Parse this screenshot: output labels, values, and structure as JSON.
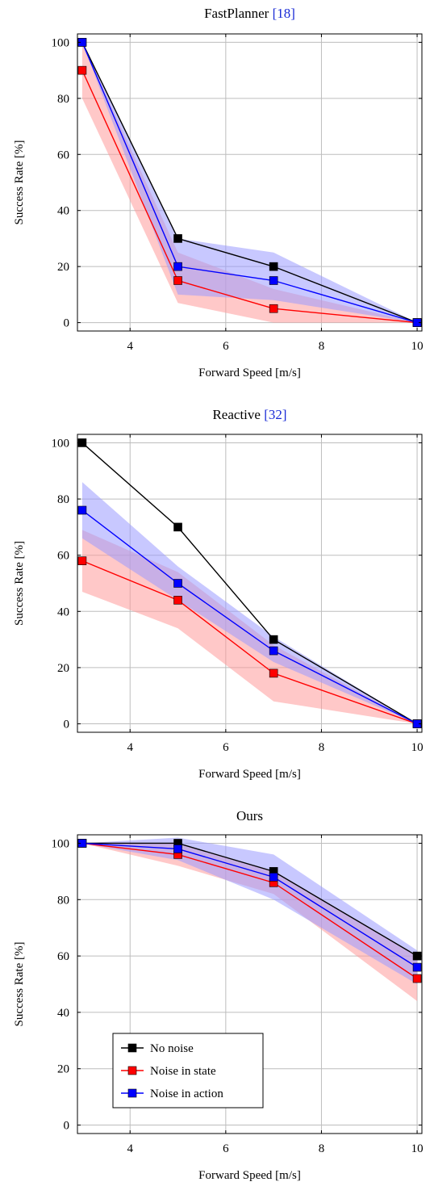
{
  "figure": {
    "xlabel": "Forward Speed [m/s]",
    "ylabel": "Success Rate [%]"
  },
  "legend": {
    "placement": "lower-left",
    "entries": [
      {
        "label": "No noise",
        "color": "#000000"
      },
      {
        "label": "Noise in state",
        "color": "#ff0000"
      },
      {
        "label": "Noise in action",
        "color": "#0000ff"
      }
    ]
  },
  "chart_data": [
    {
      "type": "line",
      "title": "FastPlanner",
      "title_citation": "[18]",
      "xlabel": "Forward Speed [m/s]",
      "ylabel": "Success Rate [%]",
      "x": [
        3,
        5,
        7,
        10
      ],
      "xlim": [
        2.9,
        10.1
      ],
      "ylim": [
        -3,
        103
      ],
      "xticks": [
        4,
        6,
        8,
        10
      ],
      "yticks": [
        0,
        20,
        40,
        60,
        80,
        100
      ],
      "grid": true,
      "series": [
        {
          "name": "No noise",
          "color": "#000000",
          "values": [
            100,
            30,
            20,
            0
          ],
          "band": null
        },
        {
          "name": "Noise in state",
          "color": "#ff0000",
          "values": [
            90,
            15,
            5,
            0
          ],
          "band": {
            "lower": [
              80,
              7,
              0,
              0
            ],
            "upper": [
              100,
              25,
              12,
              0
            ]
          }
        },
        {
          "name": "Noise in action",
          "color": "#0000ff",
          "values": [
            100,
            20,
            15,
            0
          ],
          "band": {
            "lower": [
              100,
              10,
              8,
              0
            ],
            "upper": [
              100,
              30,
              25,
              0
            ]
          }
        }
      ]
    },
    {
      "type": "line",
      "title": "Reactive",
      "title_citation": "[32]",
      "xlabel": "Forward Speed [m/s]",
      "ylabel": "Success Rate [%]",
      "x": [
        3,
        5,
        7,
        10
      ],
      "xlim": [
        2.9,
        10.1
      ],
      "ylim": [
        -3,
        103
      ],
      "xticks": [
        4,
        6,
        8,
        10
      ],
      "yticks": [
        0,
        20,
        40,
        60,
        80,
        100
      ],
      "grid": true,
      "series": [
        {
          "name": "No noise",
          "color": "#000000",
          "values": [
            100,
            70,
            30,
            0
          ],
          "band": null
        },
        {
          "name": "Noise in state",
          "color": "#ff0000",
          "values": [
            58,
            44,
            18,
            0
          ],
          "band": {
            "lower": [
              47,
              34,
              8,
              0
            ],
            "upper": [
              69,
              54,
              28,
              0
            ]
          }
        },
        {
          "name": "Noise in action",
          "color": "#0000ff",
          "values": [
            76,
            50,
            26,
            0
          ],
          "band": {
            "lower": [
              66,
              44,
              22,
              0
            ],
            "upper": [
              86,
              56,
              31,
              0
            ]
          }
        }
      ]
    },
    {
      "type": "line",
      "title": "Ours",
      "title_citation": "",
      "xlabel": "Forward Speed [m/s]",
      "ylabel": "Success Rate [%]",
      "x": [
        3,
        5,
        7,
        10
      ],
      "xlim": [
        2.9,
        10.1
      ],
      "ylim": [
        -3,
        103
      ],
      "xticks": [
        4,
        6,
        8,
        10
      ],
      "yticks": [
        0,
        20,
        40,
        60,
        80,
        100
      ],
      "grid": true,
      "legend": true,
      "series": [
        {
          "name": "No noise",
          "color": "#000000",
          "values": [
            100,
            100,
            90,
            60
          ],
          "band": null
        },
        {
          "name": "Noise in state",
          "color": "#ff0000",
          "values": [
            100,
            96,
            86,
            52
          ],
          "band": {
            "lower": [
              100,
              92,
              82,
              44
            ],
            "upper": [
              100,
              100,
              90,
              60
            ]
          }
        },
        {
          "name": "Noise in action",
          "color": "#0000ff",
          "values": [
            100,
            98,
            88,
            56
          ],
          "band": {
            "lower": [
              100,
              94,
              80,
              50
            ],
            "upper": [
              100,
              102,
              96,
              62
            ]
          }
        }
      ]
    }
  ]
}
